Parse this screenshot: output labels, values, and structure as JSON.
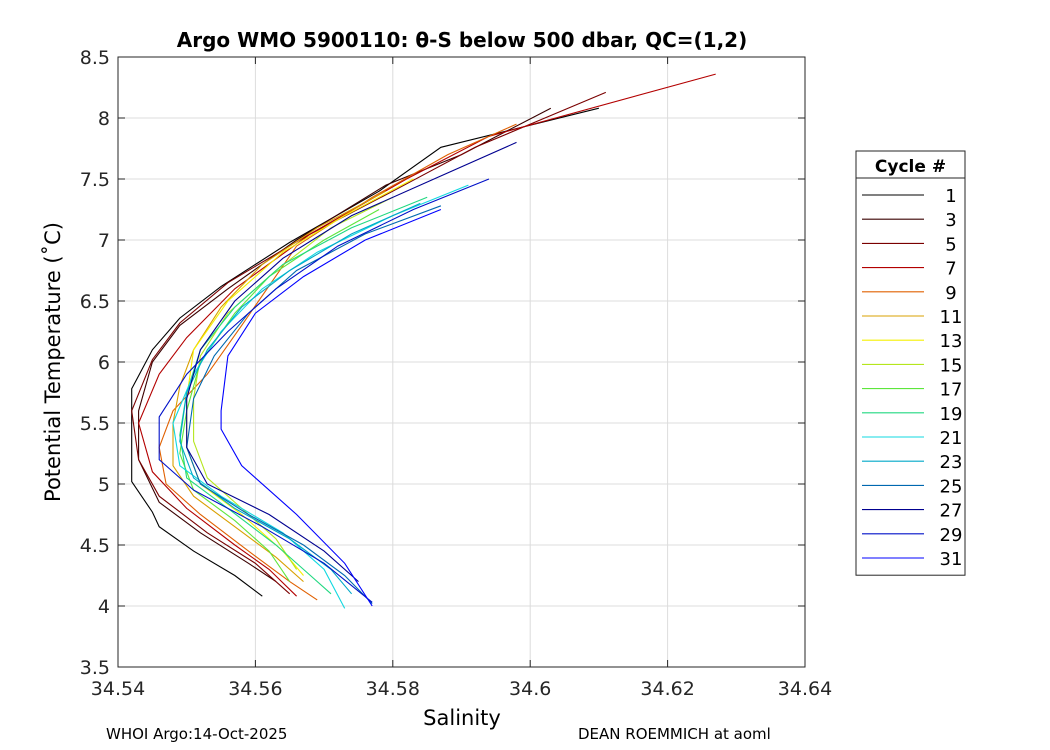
{
  "chart_data": {
    "type": "line",
    "title": "Argo WMO 5900110: θ-S below 500 dbar,  QC=(1,2)",
    "xlabel": "Salinity",
    "ylabel": "Potential Temperature (˚C)",
    "xlim": [
      34.54,
      34.64
    ],
    "ylim": [
      3.5,
      8.5
    ],
    "xticks": [
      "34.54",
      "34.56",
      "34.58",
      "34.6",
      "34.62",
      "34.64"
    ],
    "yticks": [
      "3.5",
      "4",
      "4.5",
      "5",
      "5.5",
      "6",
      "6.5",
      "7",
      "7.5",
      "8",
      "8.5"
    ],
    "grid": true,
    "legend_title": "Cycle #",
    "legend_position": "outside-right",
    "series": [
      {
        "name": "1",
        "color": "#000000",
        "points": [
          [
            34.61,
            8.08
          ],
          [
            34.587,
            7.76
          ],
          [
            34.578,
            7.4
          ],
          [
            34.565,
            6.98
          ],
          [
            34.555,
            6.62
          ],
          [
            34.549,
            6.36
          ],
          [
            34.545,
            6.1
          ],
          [
            34.542,
            5.78
          ],
          [
            34.542,
            5.4
          ],
          [
            34.542,
            5.02
          ],
          [
            34.545,
            4.77
          ],
          [
            34.546,
            4.65
          ],
          [
            34.551,
            4.45
          ],
          [
            34.557,
            4.25
          ],
          [
            34.561,
            4.08
          ]
        ]
      },
      {
        "name": "3",
        "color": "#3a0000",
        "points": [
          [
            34.603,
            8.08
          ],
          [
            34.59,
            7.7
          ],
          [
            34.579,
            7.45
          ],
          [
            34.566,
            7.0
          ],
          [
            34.556,
            6.6
          ],
          [
            34.549,
            6.3
          ],
          [
            34.545,
            6.0
          ],
          [
            34.543,
            5.6
          ],
          [
            34.543,
            5.2
          ],
          [
            34.546,
            4.85
          ],
          [
            34.552,
            4.6
          ],
          [
            34.559,
            4.35
          ],
          [
            34.563,
            4.2
          ]
        ]
      },
      {
        "name": "5",
        "color": "#7a0000",
        "points": [
          [
            34.611,
            8.21
          ],
          [
            34.592,
            7.76
          ],
          [
            34.58,
            7.4
          ],
          [
            34.567,
            7.02
          ],
          [
            34.556,
            6.65
          ],
          [
            34.549,
            6.32
          ],
          [
            34.545,
            6.02
          ],
          [
            34.542,
            5.6
          ],
          [
            34.543,
            5.2
          ],
          [
            34.546,
            4.9
          ],
          [
            34.553,
            4.6
          ],
          [
            34.56,
            4.35
          ],
          [
            34.565,
            4.1
          ]
        ]
      },
      {
        "name": "7",
        "color": "#b30000",
        "points": [
          [
            34.627,
            8.36
          ],
          [
            34.594,
            7.85
          ],
          [
            34.582,
            7.5
          ],
          [
            34.568,
            7.05
          ],
          [
            34.557,
            6.6
          ],
          [
            34.55,
            6.2
          ],
          [
            34.546,
            5.9
          ],
          [
            34.543,
            5.5
          ],
          [
            34.545,
            5.1
          ],
          [
            34.55,
            4.8
          ],
          [
            34.557,
            4.5
          ],
          [
            34.562,
            4.3
          ],
          [
            34.566,
            4.08
          ]
        ]
      },
      {
        "name": "9",
        "color": "#e06000",
        "points": [
          [
            34.598,
            7.95
          ],
          [
            34.588,
            7.7
          ],
          [
            34.577,
            7.35
          ],
          [
            34.566,
            6.95
          ],
          [
            34.558,
            6.3
          ],
          [
            34.553,
            5.9
          ],
          [
            34.548,
            5.6
          ],
          [
            34.546,
            5.3
          ],
          [
            34.547,
            5.0
          ],
          [
            34.552,
            4.75
          ],
          [
            34.559,
            4.45
          ],
          [
            34.565,
            4.2
          ],
          [
            34.569,
            4.05
          ]
        ]
      },
      {
        "name": "11",
        "color": "#d9a000",
        "points": [
          [
            34.579,
            7.4
          ],
          [
            34.569,
            7.1
          ],
          [
            34.561,
            6.8
          ],
          [
            34.555,
            6.45
          ],
          [
            34.551,
            6.1
          ],
          [
            34.549,
            5.8
          ],
          [
            34.548,
            5.5
          ],
          [
            34.548,
            5.15
          ],
          [
            34.551,
            4.9
          ],
          [
            34.557,
            4.65
          ],
          [
            34.563,
            4.4
          ],
          [
            34.567,
            4.2
          ]
        ]
      },
      {
        "name": "13",
        "color": "#f5f000",
        "points": [
          [
            34.583,
            7.5
          ],
          [
            34.573,
            7.2
          ],
          [
            34.564,
            6.9
          ],
          [
            34.556,
            6.5
          ],
          [
            34.551,
            6.1
          ],
          [
            34.55,
            5.7
          ],
          [
            34.55,
            5.3
          ],
          [
            34.552,
            5.0
          ],
          [
            34.558,
            4.75
          ],
          [
            34.564,
            4.45
          ],
          [
            34.567,
            4.25
          ]
        ]
      },
      {
        "name": "15",
        "color": "#b5e61d",
        "points": [
          [
            34.58,
            7.35
          ],
          [
            34.571,
            7.1
          ],
          [
            34.563,
            6.75
          ],
          [
            34.556,
            6.4
          ],
          [
            34.552,
            6.05
          ],
          [
            34.551,
            5.7
          ],
          [
            34.551,
            5.35
          ],
          [
            34.553,
            5.05
          ],
          [
            34.558,
            4.8
          ],
          [
            34.563,
            4.55
          ],
          [
            34.566,
            4.3
          ]
        ]
      },
      {
        "name": "17",
        "color": "#5ee63c",
        "points": [
          [
            34.578,
            7.25
          ],
          [
            34.57,
            7.0
          ],
          [
            34.562,
            6.7
          ],
          [
            34.557,
            6.4
          ],
          [
            34.552,
            6.0
          ],
          [
            34.55,
            5.6
          ],
          [
            34.549,
            5.25
          ],
          [
            34.551,
            4.95
          ],
          [
            34.557,
            4.7
          ],
          [
            34.562,
            4.45
          ],
          [
            34.565,
            4.2
          ]
        ]
      },
      {
        "name": "19",
        "color": "#20d880",
        "points": [
          [
            34.585,
            7.35
          ],
          [
            34.574,
            7.1
          ],
          [
            34.564,
            6.8
          ],
          [
            34.557,
            6.45
          ],
          [
            34.552,
            6.1
          ],
          [
            34.55,
            5.75
          ],
          [
            34.549,
            5.4
          ],
          [
            34.55,
            5.05
          ],
          [
            34.556,
            4.8
          ],
          [
            34.563,
            4.5
          ],
          [
            34.568,
            4.25
          ],
          [
            34.571,
            4.1
          ]
        ]
      },
      {
        "name": "21",
        "color": "#10d8e0",
        "points": [
          [
            34.591,
            7.45
          ],
          [
            34.58,
            7.2
          ],
          [
            34.569,
            6.9
          ],
          [
            34.561,
            6.6
          ],
          [
            34.555,
            6.25
          ],
          [
            34.551,
            5.9
          ],
          [
            34.548,
            5.5
          ],
          [
            34.549,
            5.15
          ],
          [
            34.555,
            4.9
          ],
          [
            34.564,
            4.6
          ],
          [
            34.57,
            4.3
          ],
          [
            34.573,
            3.98
          ]
        ]
      },
      {
        "name": "23",
        "color": "#00a8c8",
        "points": [
          [
            34.584,
            7.3
          ],
          [
            34.574,
            7.05
          ],
          [
            34.565,
            6.75
          ],
          [
            34.558,
            6.45
          ],
          [
            34.553,
            6.1
          ],
          [
            34.55,
            5.75
          ],
          [
            34.549,
            5.35
          ],
          [
            34.551,
            5.05
          ],
          [
            34.557,
            4.8
          ],
          [
            34.565,
            4.55
          ],
          [
            34.571,
            4.3
          ],
          [
            34.574,
            4.1
          ]
        ]
      },
      {
        "name": "25",
        "color": "#0068b0",
        "points": [
          [
            34.587,
            7.28
          ],
          [
            34.576,
            7.05
          ],
          [
            34.566,
            6.75
          ],
          [
            34.559,
            6.4
          ],
          [
            34.554,
            6.05
          ],
          [
            34.551,
            5.7
          ],
          [
            34.55,
            5.3
          ],
          [
            34.552,
            5.0
          ],
          [
            34.559,
            4.75
          ],
          [
            34.567,
            4.5
          ],
          [
            34.573,
            4.25
          ],
          [
            34.577,
            4.02
          ]
        ]
      },
      {
        "name": "27",
        "color": "#000090",
        "points": [
          [
            34.598,
            7.8
          ],
          [
            34.586,
            7.5
          ],
          [
            34.574,
            7.2
          ],
          [
            34.564,
            6.85
          ],
          [
            34.557,
            6.5
          ],
          [
            34.552,
            6.1
          ],
          [
            34.55,
            5.7
          ],
          [
            34.55,
            5.3
          ],
          [
            34.553,
            5.0
          ],
          [
            34.562,
            4.75
          ],
          [
            34.57,
            4.45
          ],
          [
            34.575,
            4.2
          ]
        ]
      },
      {
        "name": "29",
        "color": "#0010c8",
        "points": [
          [
            34.594,
            7.5
          ],
          [
            34.583,
            7.25
          ],
          [
            34.572,
            6.95
          ],
          [
            34.563,
            6.6
          ],
          [
            34.556,
            6.25
          ],
          [
            34.55,
            5.9
          ],
          [
            34.546,
            5.55
          ],
          [
            34.546,
            5.2
          ],
          [
            34.551,
            4.95
          ],
          [
            34.561,
            4.65
          ],
          [
            34.57,
            4.35
          ],
          [
            34.577,
            4.03
          ]
        ]
      },
      {
        "name": "31",
        "color": "#0000ff",
        "points": [
          [
            34.587,
            7.25
          ],
          [
            34.576,
            7.0
          ],
          [
            34.567,
            6.7
          ],
          [
            34.56,
            6.4
          ],
          [
            34.556,
            6.05
          ],
          [
            34.555,
            5.6
          ],
          [
            34.555,
            5.45
          ],
          [
            34.558,
            5.15
          ],
          [
            34.566,
            4.75
          ],
          [
            34.573,
            4.35
          ],
          [
            34.577,
            4.0
          ]
        ]
      }
    ]
  },
  "footer": {
    "left": "WHOI Argo:14-Oct-2025",
    "right": "DEAN ROEMMICH at aoml"
  }
}
